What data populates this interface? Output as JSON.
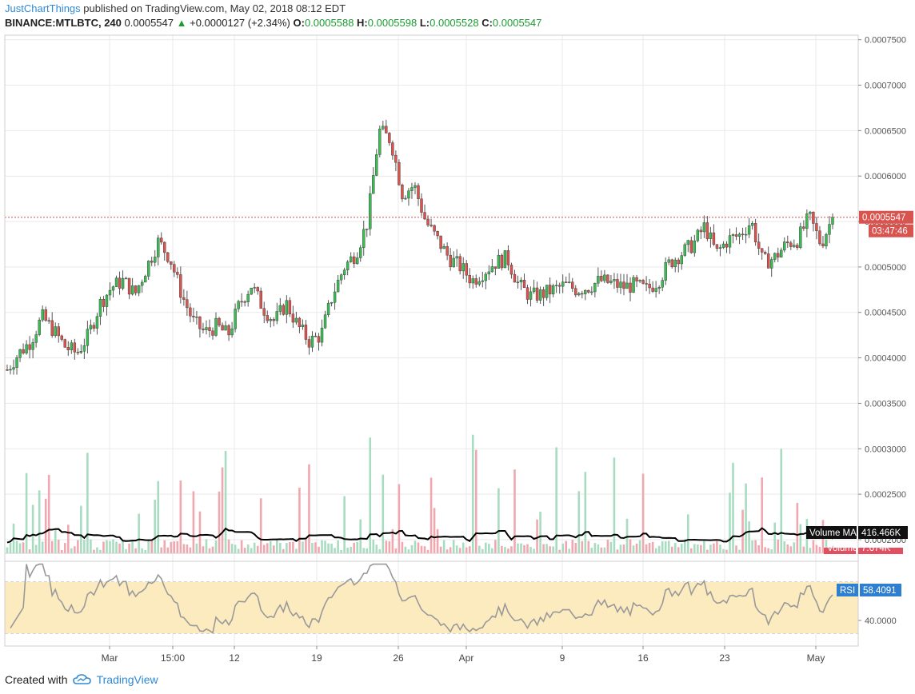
{
  "header": {
    "author": "JustChartThings",
    "published_text": "published on TradingView.com, May 02, 2018 08:12 EDT",
    "symbol": "BINANCE:MTLBTC, 240",
    "last": "0.0005547",
    "change": "+0.0000127 (+2.34%)",
    "open_label": "O:",
    "open": "0.0005588",
    "high_label": "H:",
    "high": "0.0005598",
    "low_label": "L:",
    "low": "0.0005528",
    "close_label": "C:",
    "close": "0.0005547"
  },
  "footer": {
    "created_with": "Created with",
    "brand": "TradingView"
  },
  "colors": {
    "bull": "#3cba54",
    "bear": "#d9534f",
    "wick": "#555555",
    "vol_bull": "#a8dcc0",
    "vol_bear": "#f0a8b0",
    "rsi_band": "#fdebc0",
    "rsi_line": "#999999",
    "price_line": "#d9534f",
    "grid": "#e9e9e9",
    "brand": "#2f8ad5"
  },
  "chart_data": {
    "type": "candlestick",
    "price_axis": {
      "ticks": [
        "0.0007500",
        "0.0007000",
        "0.0006500",
        "0.0006000",
        "0.0005500",
        "0.0005000",
        "0.0004500",
        "0.0004000",
        "0.0003500",
        "0.0003000",
        "0.0002500",
        "0.0002000"
      ],
      "range": [
        0.000185,
        0.000755
      ]
    },
    "x_axis": {
      "ticks": [
        "Mar",
        "15:00",
        "12",
        "19",
        "26",
        "Apr",
        "9",
        "16",
        "23",
        "May"
      ]
    },
    "last_price_label": "0.0005547",
    "countdown_label": "03:47:46",
    "last_price": 0.0005547,
    "volume_ma": {
      "label": "Volume MA",
      "value": "416.466K"
    },
    "volume_label": {
      "label": "Volume",
      "value": "7.674K"
    },
    "rsi": {
      "label": "RSI",
      "value": "58.4091",
      "tick": "40.0000",
      "range": [
        20,
        85
      ],
      "band": [
        30,
        70
      ]
    },
    "price_series": [
      {
        "x": "Feb 18",
        "v": 0.000387
      },
      {
        "x": "Feb 20",
        "v": 0.000405
      },
      {
        "x": "Feb 22",
        "v": 0.000418
      },
      {
        "x": "Feb 23",
        "v": 0.000445
      },
      {
        "x": "Feb 24",
        "v": 0.00043
      },
      {
        "x": "Feb 25",
        "v": 0.000412
      },
      {
        "x": "Feb 26",
        "v": 0.000405
      },
      {
        "x": "Feb 27",
        "v": 0.000425
      },
      {
        "x": "Feb 28",
        "v": 0.00046
      },
      {
        "x": "Mar 1",
        "v": 0.000478
      },
      {
        "x": "Mar 2",
        "v": 0.000485
      },
      {
        "x": "Mar 3",
        "v": 0.00047
      },
      {
        "x": "Mar 4",
        "v": 0.0005
      },
      {
        "x": "Mar 5",
        "v": 0.000528
      },
      {
        "x": "Mar 6",
        "v": 0.00051
      },
      {
        "x": "Mar 7",
        "v": 0.00047
      },
      {
        "x": "Mar 8",
        "v": 0.00044
      },
      {
        "x": "Mar 9",
        "v": 0.000428
      },
      {
        "x": "Mar 10",
        "v": 0.000435
      },
      {
        "x": "Mar 11",
        "v": 0.000425
      },
      {
        "x": "Mar 12",
        "v": 0.00046
      },
      {
        "x": "Mar 13",
        "v": 0.00048
      },
      {
        "x": "Mar 14",
        "v": 0.000455
      },
      {
        "x": "Mar 15",
        "v": 0.00044
      },
      {
        "x": "Mar 16",
        "v": 0.00046
      },
      {
        "x": "Mar 17",
        "v": 0.000435
      },
      {
        "x": "Mar 18",
        "v": 0.000418
      },
      {
        "x": "Mar 19",
        "v": 0.000425
      },
      {
        "x": "Mar 20",
        "v": 0.00047
      },
      {
        "x": "Mar 21",
        "v": 0.0005
      },
      {
        "x": "Mar 22",
        "v": 0.000515
      },
      {
        "x": "Mar 23",
        "v": 0.00055
      },
      {
        "x": "Mar 24",
        "v": 0.00065
      },
      {
        "x": "Mar 25",
        "v": 0.00064
      },
      {
        "x": "Mar 26",
        "v": 0.00058
      },
      {
        "x": "Mar 27",
        "v": 0.00059
      },
      {
        "x": "Mar 28",
        "v": 0.00055
      },
      {
        "x": "Mar 29",
        "v": 0.00053
      },
      {
        "x": "Mar 30",
        "v": 0.00051
      },
      {
        "x": "Mar 31",
        "v": 0.0005
      },
      {
        "x": "Apr 1",
        "v": 0.000485
      },
      {
        "x": "Apr 2",
        "v": 0.000495
      },
      {
        "x": "Apr 3",
        "v": 0.000505
      },
      {
        "x": "Apr 4",
        "v": 0.00051
      },
      {
        "x": "Apr 5",
        "v": 0.00048
      },
      {
        "x": "Apr 6",
        "v": 0.000468
      },
      {
        "x": "Apr 7",
        "v": 0.00047
      },
      {
        "x": "Apr 8",
        "v": 0.000475
      },
      {
        "x": "Apr 9",
        "v": 0.00048
      },
      {
        "x": "Apr 10",
        "v": 0.000475
      },
      {
        "x": "Apr 11",
        "v": 0.000478
      },
      {
        "x": "Apr 12",
        "v": 0.000485
      },
      {
        "x": "Apr 13",
        "v": 0.000482
      },
      {
        "x": "Apr 14",
        "v": 0.000478
      },
      {
        "x": "Apr 15",
        "v": 0.00048
      },
      {
        "x": "Apr 16",
        "v": 0.000475
      },
      {
        "x": "Apr 17",
        "v": 0.000485
      },
      {
        "x": "Apr 18",
        "v": 0.000505
      },
      {
        "x": "Apr 19",
        "v": 0.000515
      },
      {
        "x": "Apr 20",
        "v": 0.000525
      },
      {
        "x": "Apr 21",
        "v": 0.000545
      },
      {
        "x": "Apr 22",
        "v": 0.000515
      },
      {
        "x": "Apr 23",
        "v": 0.00053
      },
      {
        "x": "Apr 24",
        "v": 0.000535
      },
      {
        "x": "Apr 25",
        "v": 0.00055
      },
      {
        "x": "Apr 26",
        "v": 0.000505
      },
      {
        "x": "Apr 27",
        "v": 0.00051
      },
      {
        "x": "Apr 28",
        "v": 0.000525
      },
      {
        "x": "Apr 29",
        "v": 0.00053
      },
      {
        "x": "Apr 30",
        "v": 0.000555
      },
      {
        "x": "May 1",
        "v": 0.000525
      },
      {
        "x": "May 2",
        "v": 0.000555
      }
    ]
  }
}
